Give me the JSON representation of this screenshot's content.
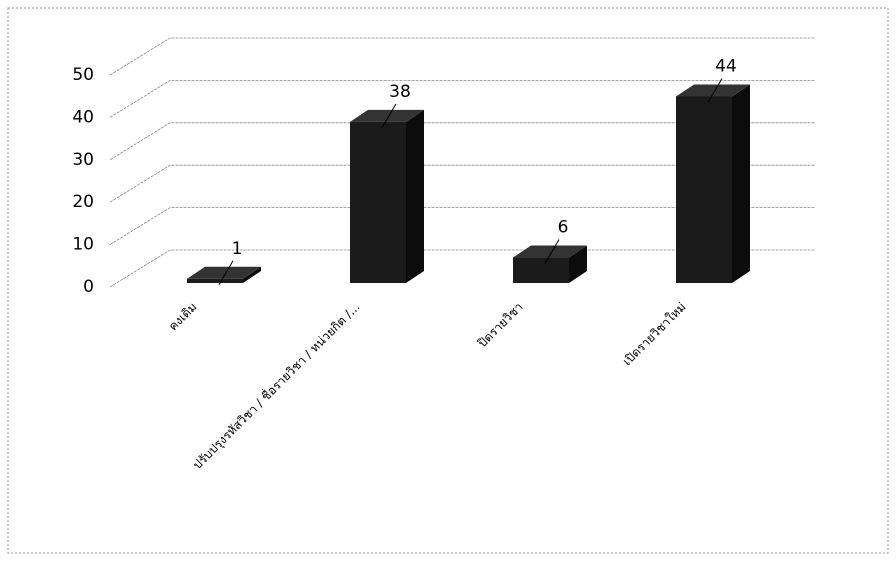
{
  "chart_data": {
    "type": "bar3d",
    "categories": [
      "คงเดิม",
      "ปรับปรุงรหัสวิชา / ชื่อรายวิชา / หน่วยกิต /...",
      "ปิดรายวิชา",
      "เปิดรายวิชาใหม่"
    ],
    "values": [
      1,
      38,
      6,
      44
    ],
    "color": "#1b1b1b",
    "ylim": [
      0,
      50
    ],
    "yticks": [
      0,
      10,
      20,
      30,
      40,
      50
    ],
    "grid": true
  }
}
